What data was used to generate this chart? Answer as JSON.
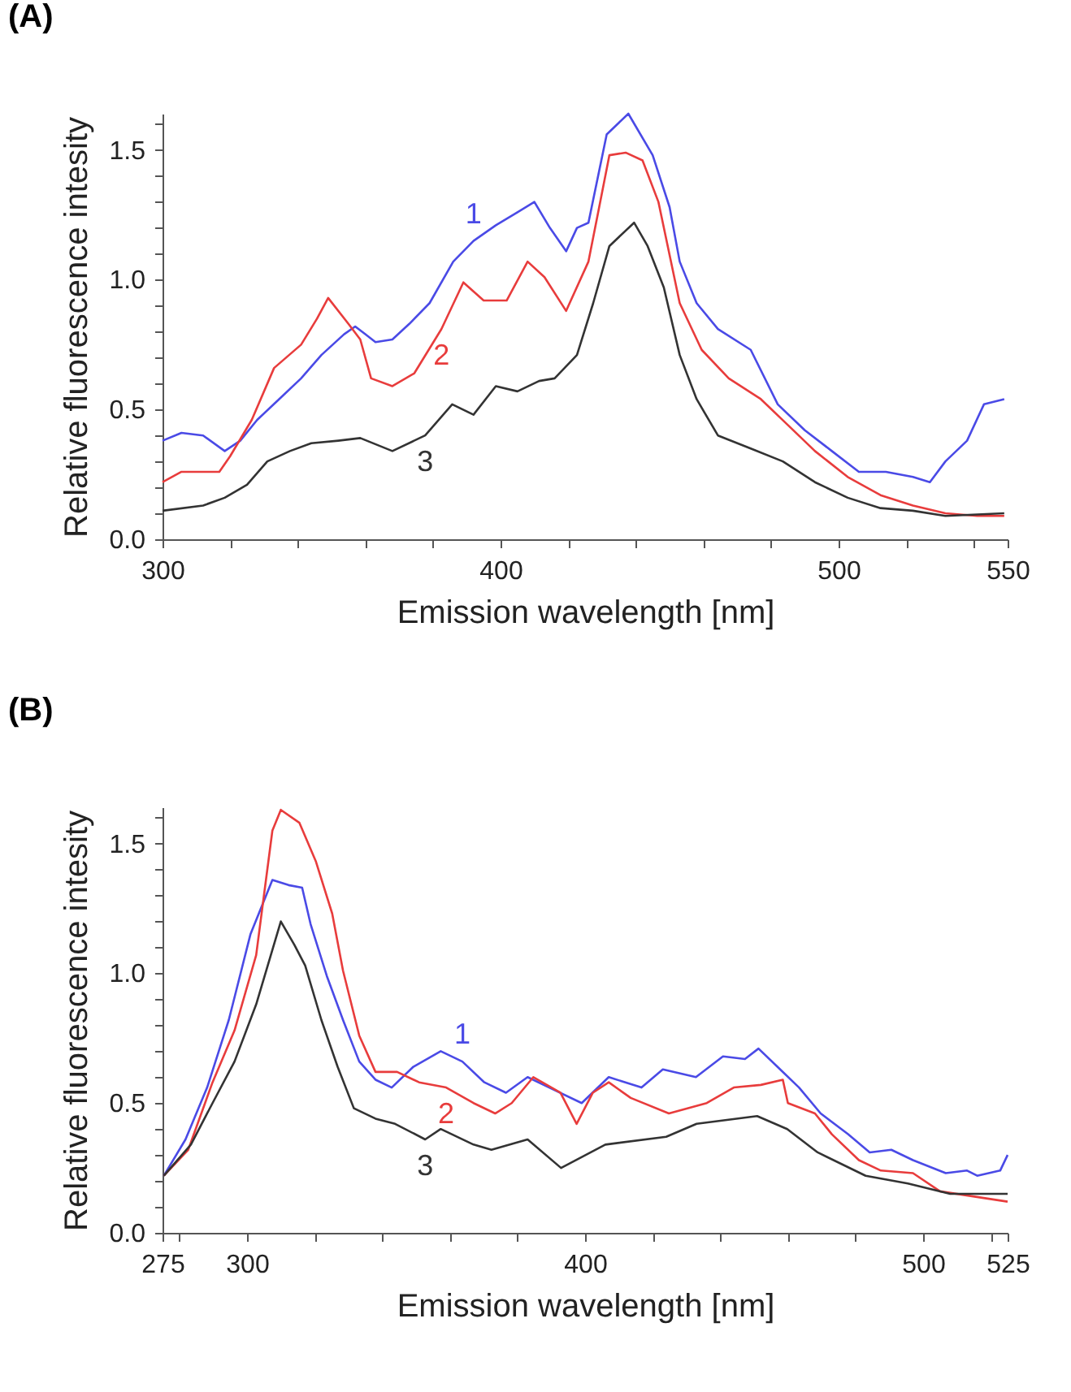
{
  "chart_data": [
    {
      "type": "line",
      "title": "(A)",
      "xlabel": "Emission wavelength [nm]",
      "ylabel": "Relative fluorescence intesity",
      "xlim": [
        300,
        550
      ],
      "ylim": [
        0,
        1.64
      ],
      "xticks": [
        300,
        {
          "value": 320,
          "label": null
        },
        {
          "value": 340,
          "label": null
        },
        {
          "value": 360,
          "label": null
        },
        {
          "value": 380,
          "label": null
        },
        400,
        {
          "value": 420,
          "label": null
        },
        {
          "value": 440,
          "label": null
        },
        {
          "value": 460,
          "label": null
        },
        {
          "value": 480,
          "label": null
        },
        500,
        {
          "value": 520,
          "label": null
        },
        {
          "value": 540,
          "label": null
        },
        550
      ],
      "yticks": [
        {
          "value": 0,
          "label": "0.0"
        },
        {
          "value": 0.1,
          "label": null
        },
        {
          "value": 0.2,
          "label": null
        },
        {
          "value": 0.3,
          "label": null
        },
        {
          "value": 0.4,
          "label": null
        },
        {
          "value": 0.5,
          "label": "0.5"
        },
        {
          "value": 0.6,
          "label": null
        },
        {
          "value": 0.7,
          "label": null
        },
        {
          "value": 0.8,
          "label": null
        },
        {
          "value": 0.9,
          "label": null
        },
        {
          "value": 1,
          "label": "1.0"
        },
        {
          "value": 1.1,
          "label": null
        },
        {
          "value": 1.2,
          "label": null
        },
        {
          "value": 1.3,
          "label": null
        },
        {
          "value": 1.4,
          "label": null
        },
        {
          "value": 1.5,
          "label": "1.5"
        },
        {
          "value": 1.6,
          "label": null
        }
      ],
      "grid": false,
      "marker": "none",
      "line_style": "solid",
      "series": [
        {
          "name": "1",
          "color": "#4a4ae6",
          "x": [
            300,
            305.6,
            312,
            318.4,
            323,
            328,
            334.5,
            341,
            347,
            353.7,
            357,
            360,
            363,
            368,
            373,
            379,
            386,
            392,
            398.6,
            405,
            410,
            414.6,
            419.4,
            422.6,
            426,
            431.4,
            437.8,
            445,
            450,
            453,
            458,
            464.3,
            474,
            482,
            490,
            498,
            506,
            514,
            522,
            527,
            531.6,
            538,
            543,
            549
          ],
          "values": [
            0.38,
            0.41,
            0.4,
            0.34,
            0.38,
            0.46,
            0.54,
            0.62,
            0.71,
            0.79,
            0.82,
            0.79,
            0.76,
            0.77,
            0.83,
            0.91,
            1.07,
            1.15,
            1.21,
            1.26,
            1.3,
            1.2,
            1.11,
            1.2,
            1.22,
            1.56,
            1.64,
            1.48,
            1.28,
            1.07,
            0.91,
            0.81,
            0.73,
            0.52,
            0.42,
            0.34,
            0.26,
            0.26,
            0.24,
            0.22,
            0.3,
            0.38,
            0.52,
            0.54
          ]
        },
        {
          "name": "2",
          "color": "#e83c3c",
          "x": [
            300,
            305.6,
            316.8,
            320,
            326.4,
            333,
            341,
            345.7,
            349,
            355,
            358.5,
            361.7,
            368,
            374.5,
            382.5,
            389,
            395,
            401.8,
            408,
            413,
            419.4,
            426,
            432.2,
            437,
            442,
            446.7,
            453,
            459.5,
            467.5,
            477,
            485,
            493,
            502.7,
            512.4,
            522,
            531.6,
            541,
            549
          ],
          "values": [
            0.22,
            0.26,
            0.26,
            0.32,
            0.46,
            0.66,
            0.75,
            0.85,
            0.93,
            0.83,
            0.77,
            0.62,
            0.59,
            0.64,
            0.81,
            0.99,
            0.92,
            0.92,
            1.07,
            1.01,
            0.88,
            1.07,
            1.48,
            1.49,
            1.46,
            1.3,
            0.91,
            0.73,
            0.62,
            0.54,
            0.44,
            0.34,
            0.24,
            0.17,
            0.13,
            0.1,
            0.09,
            0.09
          ]
        },
        {
          "name": "3",
          "color": "#333333",
          "x": [
            300,
            312,
            318.4,
            325,
            331,
            337.7,
            344,
            352,
            358.5,
            368,
            377.7,
            385.7,
            392,
            398.6,
            405,
            411.4,
            416,
            422.6,
            427.4,
            432.2,
            439.5,
            443.5,
            448.3,
            453,
            458,
            464.3,
            474,
            483.5,
            493,
            502.7,
            512.4,
            522,
            531.6,
            549
          ],
          "values": [
            0.11,
            0.13,
            0.16,
            0.21,
            0.3,
            0.34,
            0.37,
            0.38,
            0.39,
            0.34,
            0.4,
            0.52,
            0.48,
            0.59,
            0.57,
            0.61,
            0.62,
            0.71,
            0.91,
            1.13,
            1.22,
            1.13,
            0.97,
            0.71,
            0.54,
            0.4,
            0.35,
            0.3,
            0.22,
            0.16,
            0.12,
            0.11,
            0.09,
            0.1
          ]
        }
      ]
    },
    {
      "type": "line",
      "title": "(B)",
      "xlabel": "Emission wavelength [nm]",
      "ylabel": "Relative fluorescence intesity",
      "xlim": [
        275,
        525
      ],
      "ylim": [
        0,
        1.64
      ],
      "xticks": [
        275,
        {
          "value": 280,
          "label": null
        },
        300,
        {
          "value": 320,
          "label": null
        },
        {
          "value": 340,
          "label": null
        },
        {
          "value": 360,
          "label": null
        },
        {
          "value": 380,
          "label": null
        },
        400,
        {
          "value": 420,
          "label": null
        },
        {
          "value": 440,
          "label": null
        },
        {
          "value": 460,
          "label": null
        },
        {
          "value": 480,
          "label": null
        },
        500,
        {
          "value": 520,
          "label": null
        },
        525
      ],
      "yticks": [
        {
          "value": 0,
          "label": "0.0"
        },
        {
          "value": 0.1,
          "label": null
        },
        {
          "value": 0.2,
          "label": null
        },
        {
          "value": 0.3,
          "label": null
        },
        {
          "value": 0.4,
          "label": null
        },
        {
          "value": 0.5,
          "label": "0.5"
        },
        {
          "value": 0.6,
          "label": null
        },
        {
          "value": 0.7,
          "label": null
        },
        {
          "value": 0.8,
          "label": null
        },
        {
          "value": 0.9,
          "label": null
        },
        {
          "value": 1,
          "label": "1.0"
        },
        {
          "value": 1.1,
          "label": null
        },
        {
          "value": 1.2,
          "label": null
        },
        {
          "value": 1.3,
          "label": null
        },
        {
          "value": 1.4,
          "label": null
        },
        {
          "value": 1.5,
          "label": "1.5"
        },
        {
          "value": 1.6,
          "label": null
        }
      ],
      "grid": false,
      "marker": "none",
      "line_style": "solid",
      "series": [
        {
          "name": "1",
          "color": "#4a4ae6",
          "x": [
            275.4,
            281.8,
            288.2,
            294.6,
            301,
            307.5,
            312.3,
            316.3,
            318.8,
            323.6,
            328.4,
            333.2,
            338,
            342.8,
            349.2,
            357.3,
            363.7,
            370.2,
            376.6,
            383,
            389.4,
            399,
            407,
            416.7,
            423,
            432.8,
            440.8,
            447.3,
            451.3,
            456.9,
            463.3,
            469.7,
            477.8,
            484.2,
            490.6,
            497,
            506.7,
            513,
            516,
            522.8,
            525
          ],
          "values": [
            0.22,
            0.36,
            0.56,
            0.82,
            1.15,
            1.36,
            1.34,
            1.33,
            1.19,
            0.99,
            0.82,
            0.66,
            0.59,
            0.56,
            0.64,
            0.7,
            0.66,
            0.58,
            0.54,
            0.6,
            0.56,
            0.5,
            0.6,
            0.56,
            0.63,
            0.6,
            0.68,
            0.67,
            0.71,
            0.64,
            0.56,
            0.46,
            0.38,
            0.31,
            0.32,
            0.28,
            0.23,
            0.24,
            0.22,
            0.24,
            0.3
          ]
        },
        {
          "name": "2",
          "color": "#e83c3c",
          "x": [
            275.4,
            282.6,
            289.8,
            296.3,
            302.7,
            307.5,
            310,
            315.5,
            320.4,
            325.2,
            328.4,
            333.2,
            338,
            344.4,
            350.9,
            358.9,
            367,
            373.4,
            378.3,
            384.7,
            392.7,
            397.5,
            402.3,
            407,
            413.5,
            424.8,
            436,
            444,
            452,
            458.5,
            460,
            468,
            473,
            481,
            487.5,
            497,
            505,
            525
          ],
          "values": [
            0.22,
            0.32,
            0.58,
            0.78,
            1.07,
            1.55,
            1.63,
            1.58,
            1.43,
            1.23,
            1.01,
            0.76,
            0.62,
            0.62,
            0.58,
            0.56,
            0.5,
            0.46,
            0.5,
            0.6,
            0.54,
            0.42,
            0.54,
            0.58,
            0.52,
            0.46,
            0.5,
            0.56,
            0.57,
            0.59,
            0.5,
            0.46,
            0.38,
            0.28,
            0.24,
            0.23,
            0.16,
            0.12
          ]
        },
        {
          "name": "3",
          "color": "#333333",
          "x": [
            275.4,
            283.4,
            289.8,
            296.3,
            302.7,
            307.5,
            310,
            314,
            317.2,
            322,
            326.8,
            331.6,
            338,
            343.8,
            352.7,
            357.3,
            367,
            372.3,
            383,
            392.9,
            406,
            424,
            433,
            450.9,
            459.8,
            468.8,
            483,
            495.5,
            508,
            525
          ],
          "values": [
            0.22,
            0.34,
            0.5,
            0.66,
            0.88,
            1.09,
            1.2,
            1.11,
            1.03,
            0.82,
            0.64,
            0.48,
            0.44,
            0.42,
            0.36,
            0.4,
            0.34,
            0.32,
            0.36,
            0.25,
            0.34,
            0.37,
            0.42,
            0.45,
            0.4,
            0.31,
            0.22,
            0.19,
            0.15,
            0.15
          ]
        }
      ]
    }
  ]
}
